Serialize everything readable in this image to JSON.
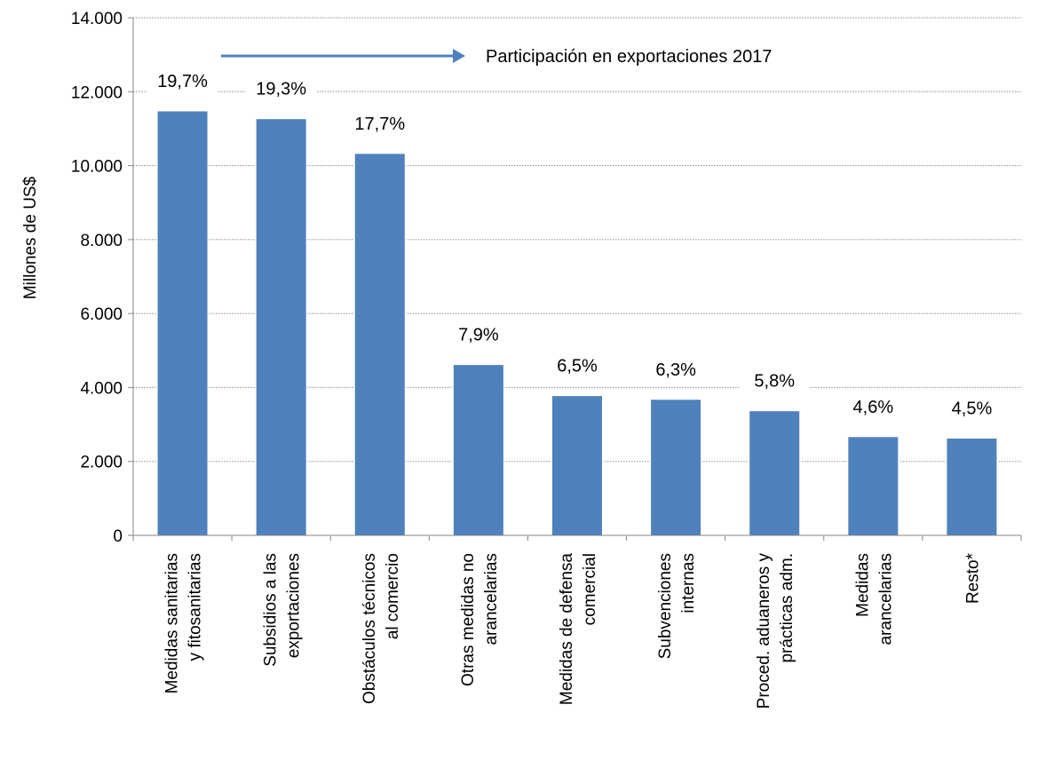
{
  "chart_data": {
    "type": "bar",
    "title": "",
    "xlabel": "",
    "ylabel": "Millones de US$",
    "ylim": [
      0,
      14000
    ],
    "yticks": [
      {
        "value": 0,
        "label": "0"
      },
      {
        "value": 2000,
        "label": "2.000"
      },
      {
        "value": 4000,
        "label": "4.000"
      },
      {
        "value": 6000,
        "label": "6.000"
      },
      {
        "value": 8000,
        "label": "8.000"
      },
      {
        "value": 10000,
        "label": "10.000"
      },
      {
        "value": 12000,
        "label": "12.000"
      },
      {
        "value": 14000,
        "label": "14.000"
      }
    ],
    "grid": true,
    "legend": "none",
    "bar_color": "#4F81BD",
    "categories": [
      [
        "Medidas sanitarias",
        "y fitosanitarias"
      ],
      [
        "Subsidios a las",
        "exportaciones"
      ],
      [
        "Obstáculos técnicos",
        "al comercio"
      ],
      [
        "Otras medidas no",
        "arancelarias"
      ],
      [
        "Medidas de defensa",
        "comercial"
      ],
      [
        "Subvenciones",
        "internas"
      ],
      [
        "Proced. aduaneros y",
        "prácticas adm."
      ],
      [
        "Medidas",
        "arancelarias"
      ],
      [
        "Resto*"
      ]
    ],
    "values": [
      11480,
      11270,
      10330,
      4620,
      3780,
      3680,
      3370,
      2670,
      2630
    ],
    "data_labels": [
      "19,7%",
      "19,3%",
      "17,7%",
      "7,9%",
      "6,5%",
      "6,3%",
      "5,8%",
      "4,6%",
      "4,5%"
    ],
    "annotation": {
      "text": "Participación en exportaciones 2017",
      "arrow_color": "#4F81BD"
    }
  }
}
